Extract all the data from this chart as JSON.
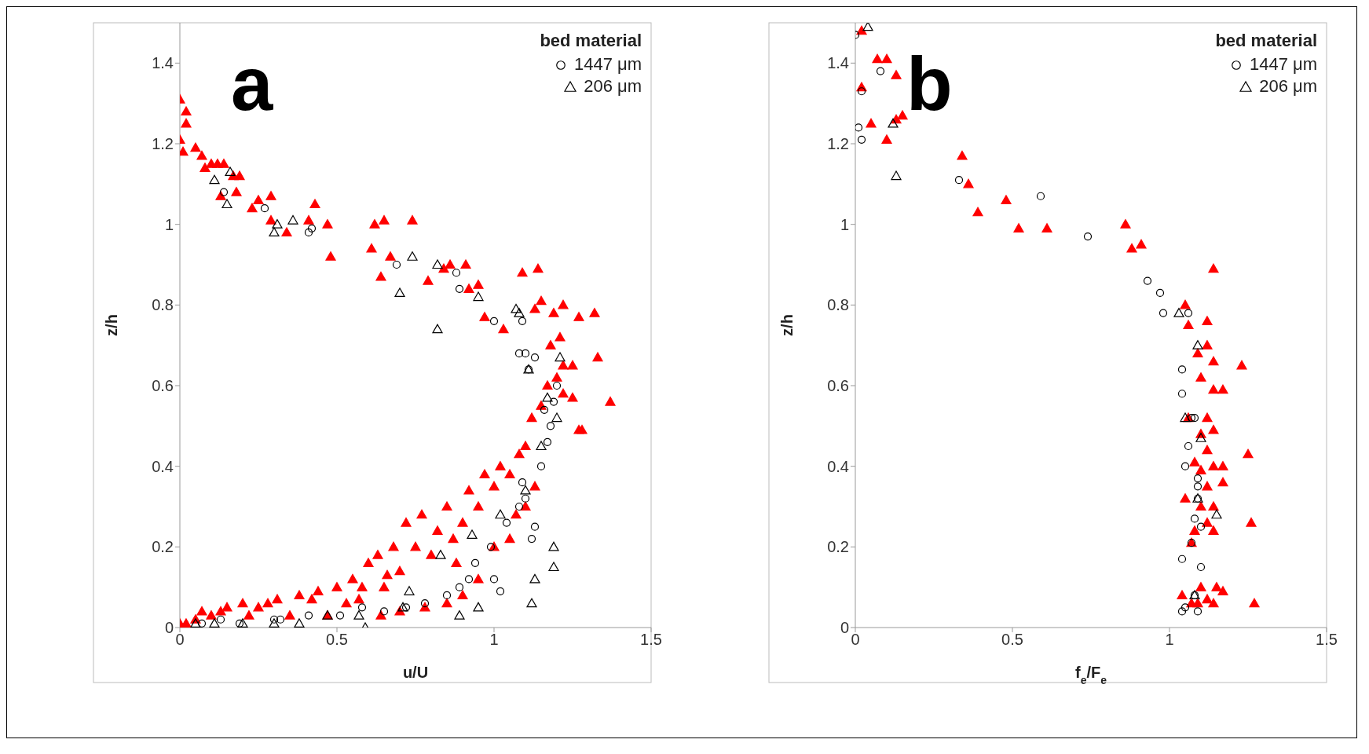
{
  "chart_data": [
    {
      "type": "scatter",
      "xlabel": "u/U",
      "ylabel": "z/h",
      "legend_title": "bed material",
      "legend": "top right",
      "grid": false,
      "annotations": [
        "a"
      ],
      "xlim": [
        0,
        1.5
      ],
      "xticks": [
        0,
        0.5,
        1,
        1.5
      ],
      "ylim": [
        0,
        1.5
      ],
      "yticks": [
        0,
        0.2,
        0.4,
        0.6,
        0.8,
        1,
        1.2,
        1.4
      ],
      "series": [
        {
          "color": "#ff0000",
          "marker": "triangle",
          "x": [
            0,
            0,
            0.02,
            0.02,
            0.01,
            0.05,
            0.07,
            0.08,
            0.1,
            0.12,
            0.14,
            0.13,
            0.17,
            0.19,
            0.18,
            0.23,
            0.25,
            0.29,
            0.29,
            0.34,
            0.41,
            0.43,
            0.47,
            0.48,
            0.61,
            0.62,
            0.65,
            0.64,
            0.67,
            0.74,
            0.79,
            0.84,
            0.86,
            0.91,
            0.92,
            0.95,
            0.97,
            1.03,
            1.09,
            1.14,
            1.15,
            1.19,
            1.22,
            1.27,
            1.32,
            1.33,
            1.37,
            1.28,
            1.21,
            1.25,
            1.13,
            0,
            0.02,
            0.05,
            0.07,
            0.1,
            0.13,
            0.15,
            0.2,
            0.22,
            0.25,
            0.28,
            0.31,
            0.35,
            0.38,
            0.42,
            0.44,
            0.47,
            0.5,
            0.53,
            0.55,
            0.57,
            0.6,
            0.63,
            0.65,
            0.68,
            0.7,
            0.72,
            0.75,
            0.77,
            0.8,
            0.82,
            0.85,
            0.87,
            0.9,
            0.92,
            0.95,
            0.97,
            1,
            1.02,
            1.05,
            1.08,
            1.1,
            1.12,
            1.15,
            1.17,
            1.2,
            1.22,
            1.25,
            1.27,
            1.13,
            1.1,
            1.05,
            1,
            0.95,
            0.9,
            0.85,
            0.78,
            0.7,
            0.64,
            1.18,
            1.22,
            1.07,
            0.88,
            0.66,
            0.58
          ],
          "values": [
            1.31,
            1.21,
            1.28,
            1.25,
            1.18,
            1.19,
            1.17,
            1.14,
            1.15,
            1.15,
            1.15,
            1.07,
            1.12,
            1.12,
            1.08,
            1.04,
            1.06,
            1.07,
            1.01,
            0.98,
            1.01,
            1.05,
            1,
            0.92,
            0.94,
            1,
            1.01,
            0.87,
            0.92,
            1.01,
            0.86,
            0.89,
            0.9,
            0.9,
            0.84,
            0.85,
            0.77,
            0.74,
            0.88,
            0.89,
            0.81,
            0.78,
            0.8,
            0.77,
            0.78,
            0.67,
            0.56,
            0.49,
            0.72,
            0.65,
            0.79,
            0.01,
            0.01,
            0.02,
            0.04,
            0.03,
            0.04,
            0.05,
            0.06,
            0.03,
            0.05,
            0.06,
            0.07,
            0.03,
            0.08,
            0.07,
            0.09,
            0.03,
            0.1,
            0.06,
            0.12,
            0.07,
            0.16,
            0.18,
            0.1,
            0.2,
            0.14,
            0.26,
            0.2,
            0.28,
            0.18,
            0.24,
            0.3,
            0.22,
            0.26,
            0.34,
            0.3,
            0.38,
            0.35,
            0.4,
            0.38,
            0.43,
            0.45,
            0.52,
            0.55,
            0.6,
            0.62,
            0.58,
            0.57,
            0.49,
            0.35,
            0.3,
            0.22,
            0.2,
            0.12,
            0.08,
            0.06,
            0.05,
            0.04,
            0.03,
            0.7,
            0.65,
            0.28,
            0.16,
            0.13,
            0.1
          ]
        },
        {
          "name": "1447 μm",
          "color": "#000000",
          "marker": "circle",
          "x": [
            0.07,
            0.13,
            0.19,
            0.3,
            0.32,
            0.41,
            0.51,
            0.58,
            0.65,
            0.72,
            0.78,
            0.85,
            0.89,
            0.92,
            0.94,
            0.99,
            1,
            1.02,
            1.04,
            1.08,
            1.09,
            1.1,
            1.13,
            1.12,
            1.15,
            1.17,
            1.18,
            1.19,
            1.2,
            1.16,
            1.13,
            1.11,
            1.08,
            1.1,
            1.09,
            1,
            0.88,
            0.89,
            0.69,
            0.41,
            0.42,
            0.27,
            0.14
          ],
          "values": [
            0.01,
            0.02,
            0.01,
            0.02,
            0.02,
            0.03,
            0.03,
            0.05,
            0.04,
            0.05,
            0.06,
            0.08,
            0.1,
            0.12,
            0.16,
            0.2,
            0.12,
            0.09,
            0.26,
            0.3,
            0.36,
            0.32,
            0.25,
            0.22,
            0.4,
            0.46,
            0.5,
            0.56,
            0.6,
            0.54,
            0.67,
            0.64,
            0.68,
            0.68,
            0.76,
            0.76,
            0.88,
            0.84,
            0.9,
            0.98,
            0.99,
            1.04,
            1.08
          ]
        },
        {
          "name": "206 μm",
          "color": "#000000",
          "marker": "triangle",
          "x": [
            0.05,
            0.11,
            0.2,
            0.3,
            0.38,
            0.47,
            0.57,
            0.59,
            0.71,
            0.73,
            0.83,
            0.89,
            0.93,
            0.95,
            1.02,
            1.1,
            1.12,
            1.13,
            1.19,
            1.19,
            1.15,
            1.17,
            1.2,
            1.21,
            1.11,
            1.08,
            1.07,
            0.95,
            0.82,
            0.82,
            0.74,
            0.7,
            0.36,
            0.31,
            0.3,
            0.16,
            0.15,
            0.11
          ],
          "values": [
            0.01,
            0.01,
            0.01,
            0.01,
            0.01,
            0.03,
            0.03,
            0,
            0.05,
            0.09,
            0.18,
            0.03,
            0.23,
            0.05,
            0.28,
            0.34,
            0.06,
            0.12,
            0.2,
            0.15,
            0.45,
            0.57,
            0.52,
            0.67,
            0.64,
            0.78,
            0.79,
            0.82,
            0.74,
            0.9,
            0.92,
            0.83,
            1.01,
            1,
            0.98,
            1.13,
            1.05,
            1.11
          ]
        }
      ]
    },
    {
      "type": "scatter",
      "xlabel": "f$_{e}$/F$_{e}$",
      "ylabel": "z/h",
      "legend_title": "bed material",
      "legend": "top right",
      "grid": false,
      "annotations": [
        "b"
      ],
      "xlim": [
        0,
        1.5
      ],
      "xticks": [
        0,
        0.5,
        1,
        1.5
      ],
      "ylim": [
        0,
        1.5
      ],
      "yticks": [
        0,
        0.2,
        0.4,
        0.6,
        0.8,
        1,
        1.2,
        1.4
      ],
      "series": [
        {
          "color": "#ff0000",
          "marker": "triangle",
          "x": [
            0.02,
            0.02,
            0.07,
            0.1,
            0.13,
            0.05,
            0.1,
            0.13,
            0.15,
            0.34,
            0.36,
            0.39,
            0.48,
            0.52,
            0.61,
            0.86,
            0.88,
            0.91,
            1.14,
            1.05,
            1.06,
            1.09,
            1.12,
            1.12,
            1.14,
            1.23,
            1.1,
            1.14,
            1.17,
            1.06,
            1.12,
            1.1,
            1.14,
            1.12,
            1.25,
            1.08,
            1.14,
            1.17,
            1.1,
            1.12,
            1.17,
            1.05,
            1.1,
            1.14,
            1.12,
            1.26,
            1.08,
            1.14,
            1.07,
            1.04,
            1.07,
            1.1,
            1.12,
            1.15,
            1.17,
            1.14,
            1.27,
            1.09
          ],
          "values": [
            1.48,
            1.34,
            1.41,
            1.41,
            1.37,
            1.25,
            1.21,
            1.26,
            1.27,
            1.17,
            1.1,
            1.03,
            1.06,
            0.99,
            0.99,
            1,
            0.94,
            0.95,
            0.89,
            0.8,
            0.75,
            0.68,
            0.76,
            0.7,
            0.66,
            0.65,
            0.62,
            0.59,
            0.59,
            0.52,
            0.52,
            0.48,
            0.49,
            0.44,
            0.43,
            0.41,
            0.4,
            0.4,
            0.39,
            0.35,
            0.36,
            0.32,
            0.3,
            0.3,
            0.26,
            0.26,
            0.24,
            0.24,
            0.21,
            0.08,
            0.06,
            0.1,
            0.07,
            0.1,
            0.09,
            0.06,
            0.06,
            0.06
          ]
        },
        {
          "name": "1447 μm",
          "color": "#000000",
          "marker": "circle",
          "x": [
            0,
            0.02,
            0.08,
            0.01,
            0.02,
            0.33,
            0.59,
            0.74,
            0.93,
            0.97,
            0.98,
            1.06,
            1.04,
            1.04,
            1.07,
            1.08,
            1.06,
            1.05,
            1.09,
            1.09,
            1.09,
            1.08,
            1.1,
            1.07,
            1.04,
            1.1,
            1.08,
            1.05,
            1.04,
            1.09
          ],
          "values": [
            1.47,
            1.33,
            1.38,
            1.24,
            1.21,
            1.11,
            1.07,
            0.97,
            0.86,
            0.83,
            0.78,
            0.78,
            0.64,
            0.58,
            0.52,
            0.52,
            0.45,
            0.4,
            0.37,
            0.35,
            0.32,
            0.27,
            0.25,
            0.21,
            0.17,
            0.15,
            0.08,
            0.05,
            0.04,
            0.04
          ]
        },
        {
          "name": "206 μm",
          "color": "#000000",
          "marker": "triangle",
          "x": [
            0.04,
            0.12,
            0.13,
            1.03,
            1.09,
            1.05,
            1.1,
            1.09,
            1.15,
            1.08
          ],
          "values": [
            1.49,
            1.25,
            1.12,
            0.78,
            0.7,
            0.52,
            0.47,
            0.32,
            0.28,
            0.08
          ]
        }
      ]
    }
  ]
}
